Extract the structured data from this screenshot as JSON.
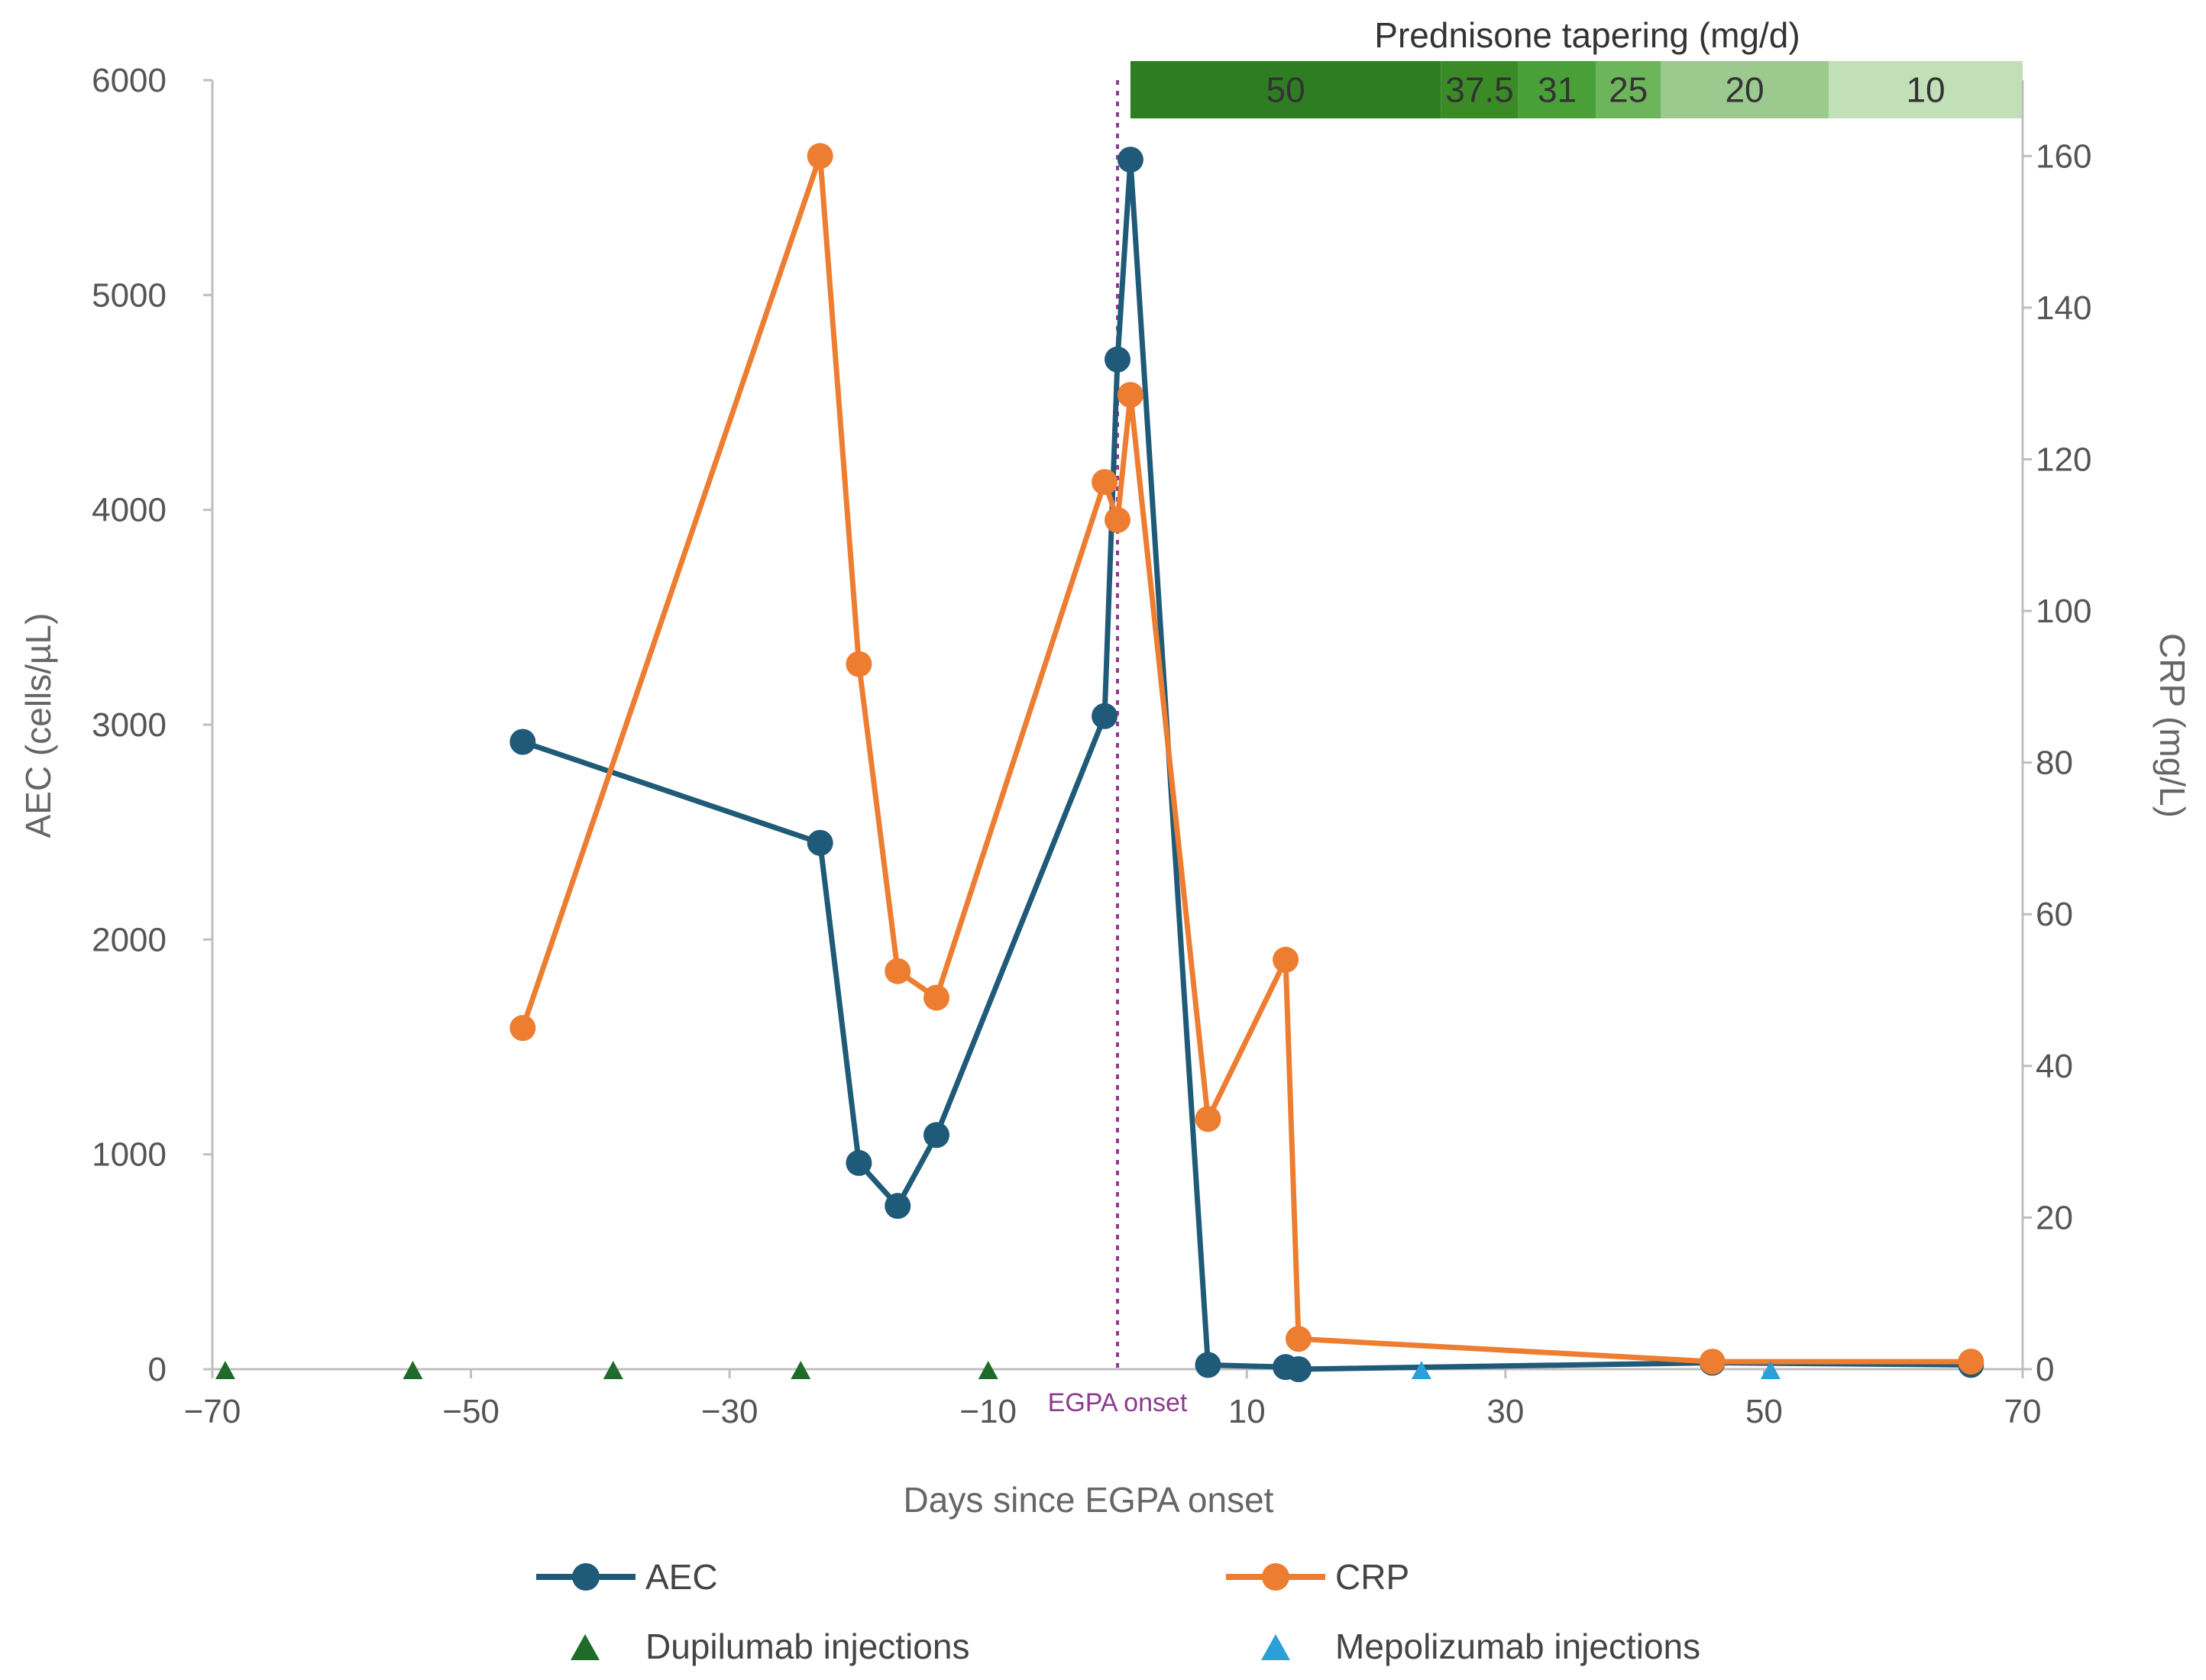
{
  "chart_data": {
    "type": "line",
    "xlabel": "Days since EGPA onset",
    "ylabel_left": "AEC (cells/µL)",
    "ylabel_right": "CRP (mg/L)",
    "xlim": [
      -70,
      70
    ],
    "ylim_left": [
      0,
      6000
    ],
    "ylim_right": [
      0,
      170
    ],
    "x_ticks": [
      -70,
      -50,
      -30,
      -10,
      10,
      30,
      50,
      70
    ],
    "x_tick_labels": [
      "−70",
      "−50",
      "−30",
      "−10",
      "10",
      "30",
      "50",
      "70"
    ],
    "y_left_ticks": [
      0,
      1000,
      2000,
      3000,
      4000,
      5000,
      6000
    ],
    "y_left_tick_labels": [
      "0",
      "1000",
      "2000",
      "3000",
      "4000",
      "5000",
      "6000"
    ],
    "y_right_ticks": [
      0,
      20,
      40,
      60,
      80,
      100,
      120,
      140,
      160
    ],
    "y_right_tick_labels": [
      "0",
      "20",
      "40",
      "60",
      "80",
      "100",
      "120",
      "140",
      "160"
    ],
    "grid": false,
    "legend_position": "bottom",
    "series": [
      {
        "name": "AEC",
        "axis": "left",
        "color": "#1f5a78",
        "x": [
          -46,
          -23,
          -20,
          -17,
          -14,
          -1,
          0,
          1,
          7,
          13,
          14,
          46,
          66
        ],
        "y": [
          2920,
          2450,
          960,
          760,
          1090,
          3040,
          4700,
          5630,
          20,
          10,
          0,
          30,
          20
        ]
      },
      {
        "name": "CRP",
        "axis": "right",
        "color": "#ed7d31",
        "x": [
          -46,
          -23,
          -20,
          -17,
          -14,
          -1,
          0,
          1,
          7,
          13,
          14,
          46,
          66
        ],
        "y": [
          45,
          160,
          93,
          52.5,
          49,
          117,
          112,
          128.5,
          33,
          54,
          4,
          1,
          1
        ]
      }
    ],
    "markers": [
      {
        "name": "Dupilumab injections",
        "color": "#1e6b2a",
        "x": [
          -69,
          -54.5,
          -39,
          -24.5,
          -10
        ]
      },
      {
        "name": "Mepolizumab injections",
        "color": "#2a9fd8",
        "x": [
          23.5,
          50.5
        ]
      }
    ],
    "annotation": {
      "label": "EGPA onset",
      "x": 0,
      "color": "#8e3a8e"
    },
    "prednisone": {
      "title": "Prednisone tapering (mg/d)",
      "segments": [
        {
          "label": "50",
          "start": 1,
          "end": 25,
          "color": "#2e7d22"
        },
        {
          "label": "37.5",
          "start": 25,
          "end": 31,
          "color": "#3a8a26"
        },
        {
          "label": "31",
          "start": 31,
          "end": 37,
          "color": "#4aa038"
        },
        {
          "label": "25",
          "start": 37,
          "end": 42,
          "color": "#6db55a"
        },
        {
          "label": "20",
          "start": 42,
          "end": 55,
          "color": "#9cc98e"
        },
        {
          "label": "10",
          "start": 55,
          "end": 70,
          "color": "#c2e0b7"
        }
      ]
    }
  }
}
